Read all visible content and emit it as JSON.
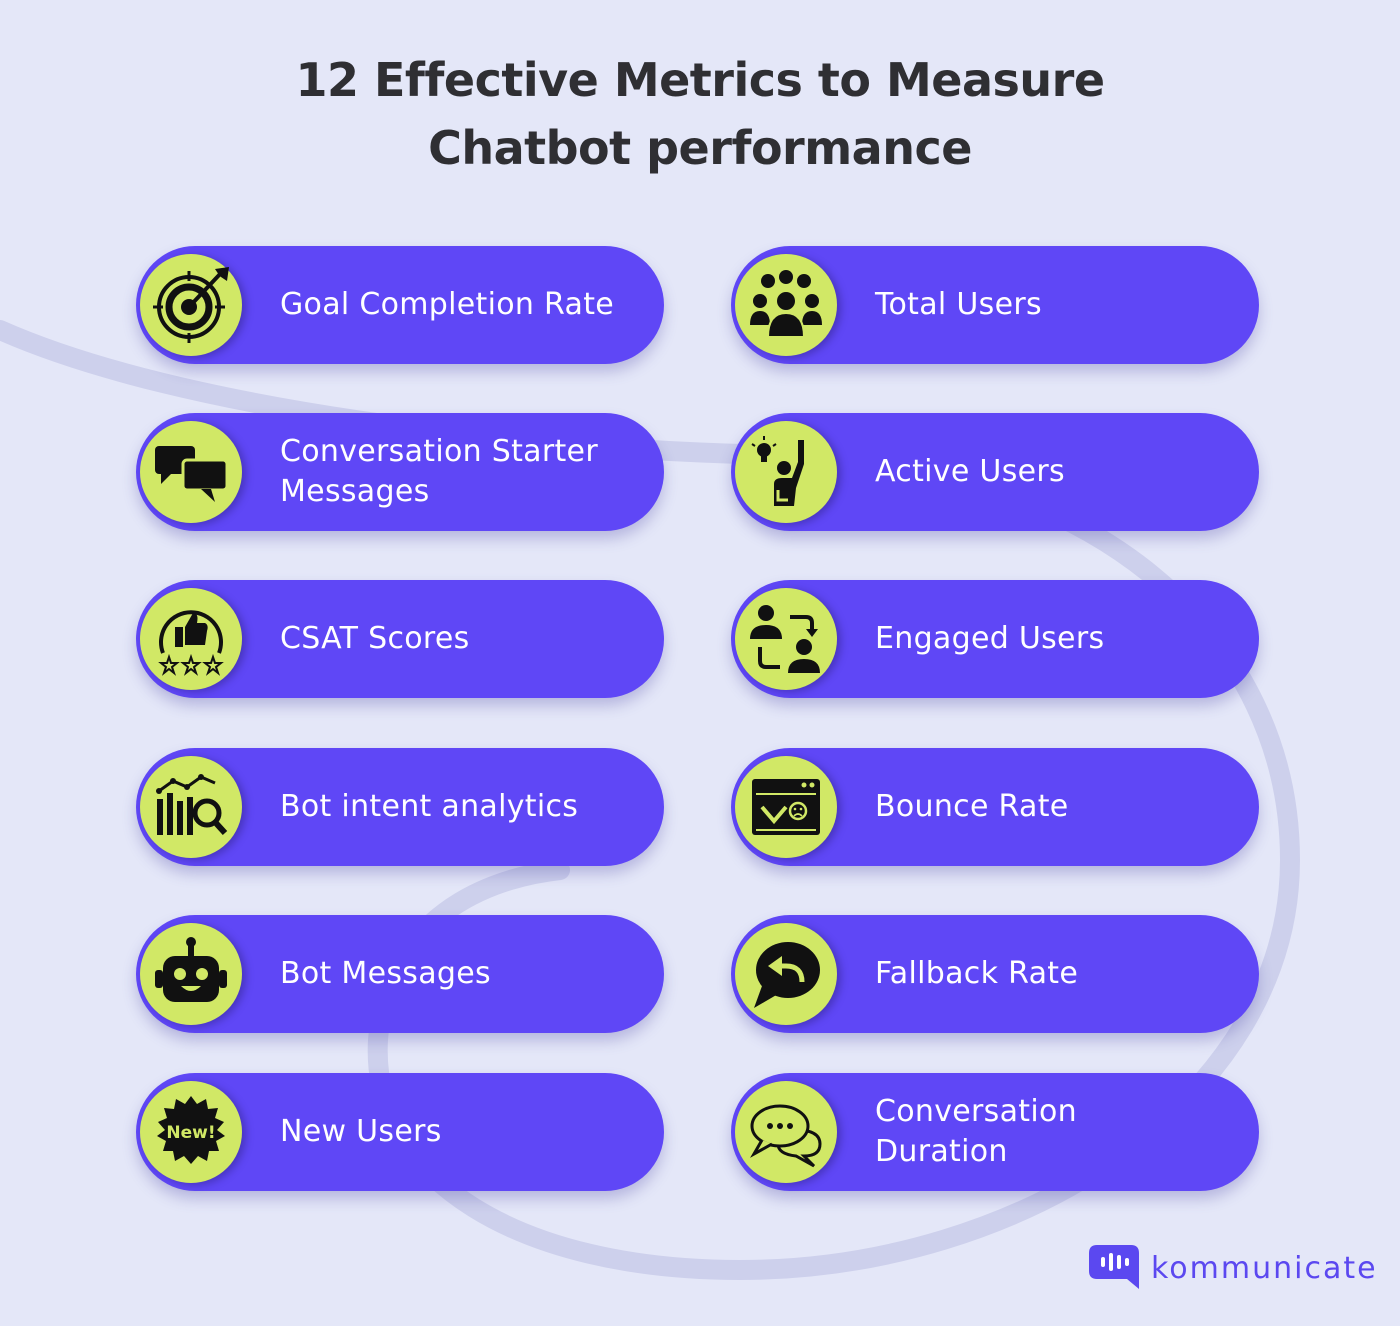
{
  "header": {
    "title_line1": "12 Effective Metrics to Measure",
    "title_line2": "Chatbot performance"
  },
  "colors": {
    "background": "#e4e7f8",
    "pill": "#5f47f6",
    "badge": "#d1e866",
    "title": "#2f2f33",
    "brand": "#5b48f0"
  },
  "metrics": {
    "left": [
      {
        "label": "Goal Completion Rate",
        "icon": "target-icon"
      },
      {
        "label": "Conversation Starter Messages",
        "icon": "chat-bubbles-icon"
      },
      {
        "label": "CSAT Scores",
        "icon": "thumbs-up-rating-icon"
      },
      {
        "label": "Bot intent analytics",
        "icon": "analytics-magnifier-icon"
      },
      {
        "label": "Bot Messages",
        "icon": "robot-icon"
      },
      {
        "label": "New Users",
        "icon": "new-badge-icon"
      }
    ],
    "right": [
      {
        "label": "Total Users",
        "icon": "user-group-icon"
      },
      {
        "label": "Active Users",
        "icon": "raised-hand-user-icon"
      },
      {
        "label": "Engaged Users",
        "icon": "user-exchange-icon"
      },
      {
        "label": "Bounce Rate",
        "icon": "browser-bounce-icon"
      },
      {
        "label": "Fallback Rate",
        "icon": "reply-bubble-icon"
      },
      {
        "label": "Conversation Duration",
        "icon": "typing-bubbles-icon"
      }
    ]
  },
  "new_badge_text": "New!",
  "brand": {
    "name": "kommunicate",
    "icon": "kommunicate-logo-icon"
  }
}
